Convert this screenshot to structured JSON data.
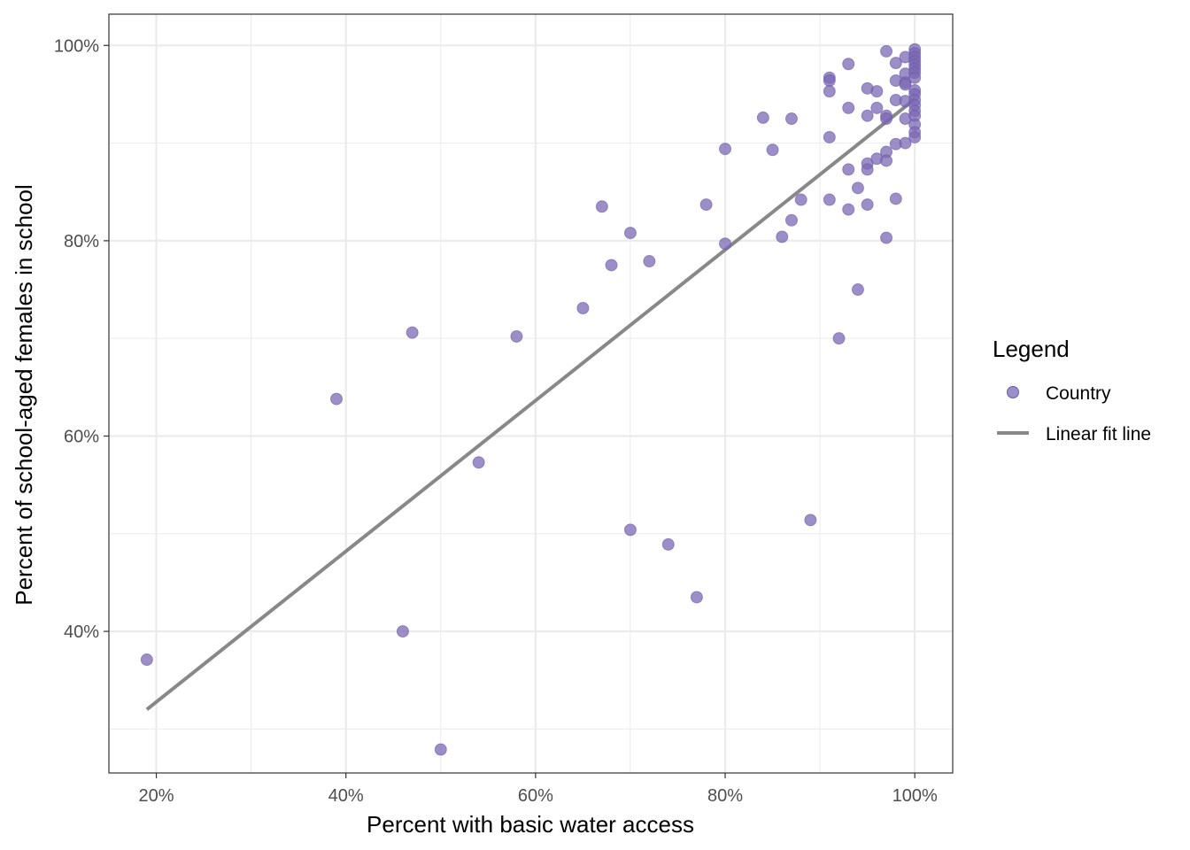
{
  "chart_data": {
    "type": "scatter",
    "title": "",
    "xlabel": "Percent with basic water access",
    "ylabel": "Percent of school-aged females in school",
    "xlim": [
      15,
      104
    ],
    "ylim": [
      25.5,
      103.2
    ],
    "x_ticks": [
      20,
      40,
      60,
      80,
      100
    ],
    "x_tick_labels": [
      "20%",
      "40%",
      "60%",
      "80%",
      "100%"
    ],
    "y_ticks": [
      40,
      60,
      80,
      100
    ],
    "y_tick_labels": [
      "40%",
      "60%",
      "80%",
      "100%"
    ],
    "grid": true,
    "colors": {
      "points": "#7b68b3",
      "fit_line": "#888888",
      "grid": "#ebebeb",
      "panel_border": "#333333"
    },
    "legend": {
      "title": "Legend",
      "position": "right",
      "entries": [
        {
          "label": "Country",
          "kind": "point"
        },
        {
          "label": "Linear fit line",
          "kind": "line"
        }
      ]
    },
    "series": [
      {
        "name": "Country",
        "kind": "points",
        "points": [
          [
            19,
            37.1
          ],
          [
            39,
            63.8
          ],
          [
            46,
            40.0
          ],
          [
            47,
            70.6
          ],
          [
            50,
            27.9
          ],
          [
            54,
            57.3
          ],
          [
            58,
            70.2
          ],
          [
            65,
            73.1
          ],
          [
            67,
            83.5
          ],
          [
            68,
            77.5
          ],
          [
            70,
            80.8
          ],
          [
            70,
            50.4
          ],
          [
            72,
            77.9
          ],
          [
            74,
            48.9
          ],
          [
            77,
            43.5
          ],
          [
            78,
            83.7
          ],
          [
            80,
            89.4
          ],
          [
            80,
            79.7
          ],
          [
            84,
            92.6
          ],
          [
            85,
            89.3
          ],
          [
            86,
            80.4
          ],
          [
            87,
            92.5
          ],
          [
            87,
            82.1
          ],
          [
            88,
            84.2
          ],
          [
            89,
            51.4
          ],
          [
            91,
            96.7
          ],
          [
            91,
            96.4
          ],
          [
            91,
            95.3
          ],
          [
            91,
            90.6
          ],
          [
            91,
            84.2
          ],
          [
            92,
            70.0
          ],
          [
            93,
            98.1
          ],
          [
            93,
            93.6
          ],
          [
            93,
            87.3
          ],
          [
            93,
            83.2
          ],
          [
            94,
            85.4
          ],
          [
            94,
            75.0
          ],
          [
            95,
            95.6
          ],
          [
            95,
            92.8
          ],
          [
            95,
            87.9
          ],
          [
            95,
            87.3
          ],
          [
            95,
            83.7
          ],
          [
            96,
            95.3
          ],
          [
            96,
            93.6
          ],
          [
            96,
            88.4
          ],
          [
            97,
            99.4
          ],
          [
            97,
            92.8
          ],
          [
            97,
            92.5
          ],
          [
            97,
            89.1
          ],
          [
            97,
            88.2
          ],
          [
            97,
            80.3
          ],
          [
            98,
            98.2
          ],
          [
            98,
            96.4
          ],
          [
            98,
            94.4
          ],
          [
            98,
            89.9
          ],
          [
            98,
            84.3
          ],
          [
            99,
            98.8
          ],
          [
            99,
            97.1
          ],
          [
            99,
            96.2
          ],
          [
            99,
            96.0
          ],
          [
            99,
            94.3
          ],
          [
            99,
            92.5
          ],
          [
            99,
            90.0
          ],
          [
            100,
            99.6
          ],
          [
            100,
            99.2
          ],
          [
            100,
            98.8
          ],
          [
            100,
            98.4
          ],
          [
            100,
            98.0
          ],
          [
            100,
            97.6
          ],
          [
            100,
            97.2
          ],
          [
            100,
            96.7
          ],
          [
            100,
            95.4
          ],
          [
            100,
            95.0
          ],
          [
            100,
            94.4
          ],
          [
            100,
            93.9
          ],
          [
            100,
            93.3
          ],
          [
            100,
            92.8
          ],
          [
            100,
            91.9
          ],
          [
            100,
            91.1
          ],
          [
            100,
            90.6
          ]
        ]
      },
      {
        "name": "Linear fit line",
        "kind": "line",
        "points": [
          [
            19,
            32.0
          ],
          [
            100,
            94.5
          ]
        ]
      }
    ]
  }
}
